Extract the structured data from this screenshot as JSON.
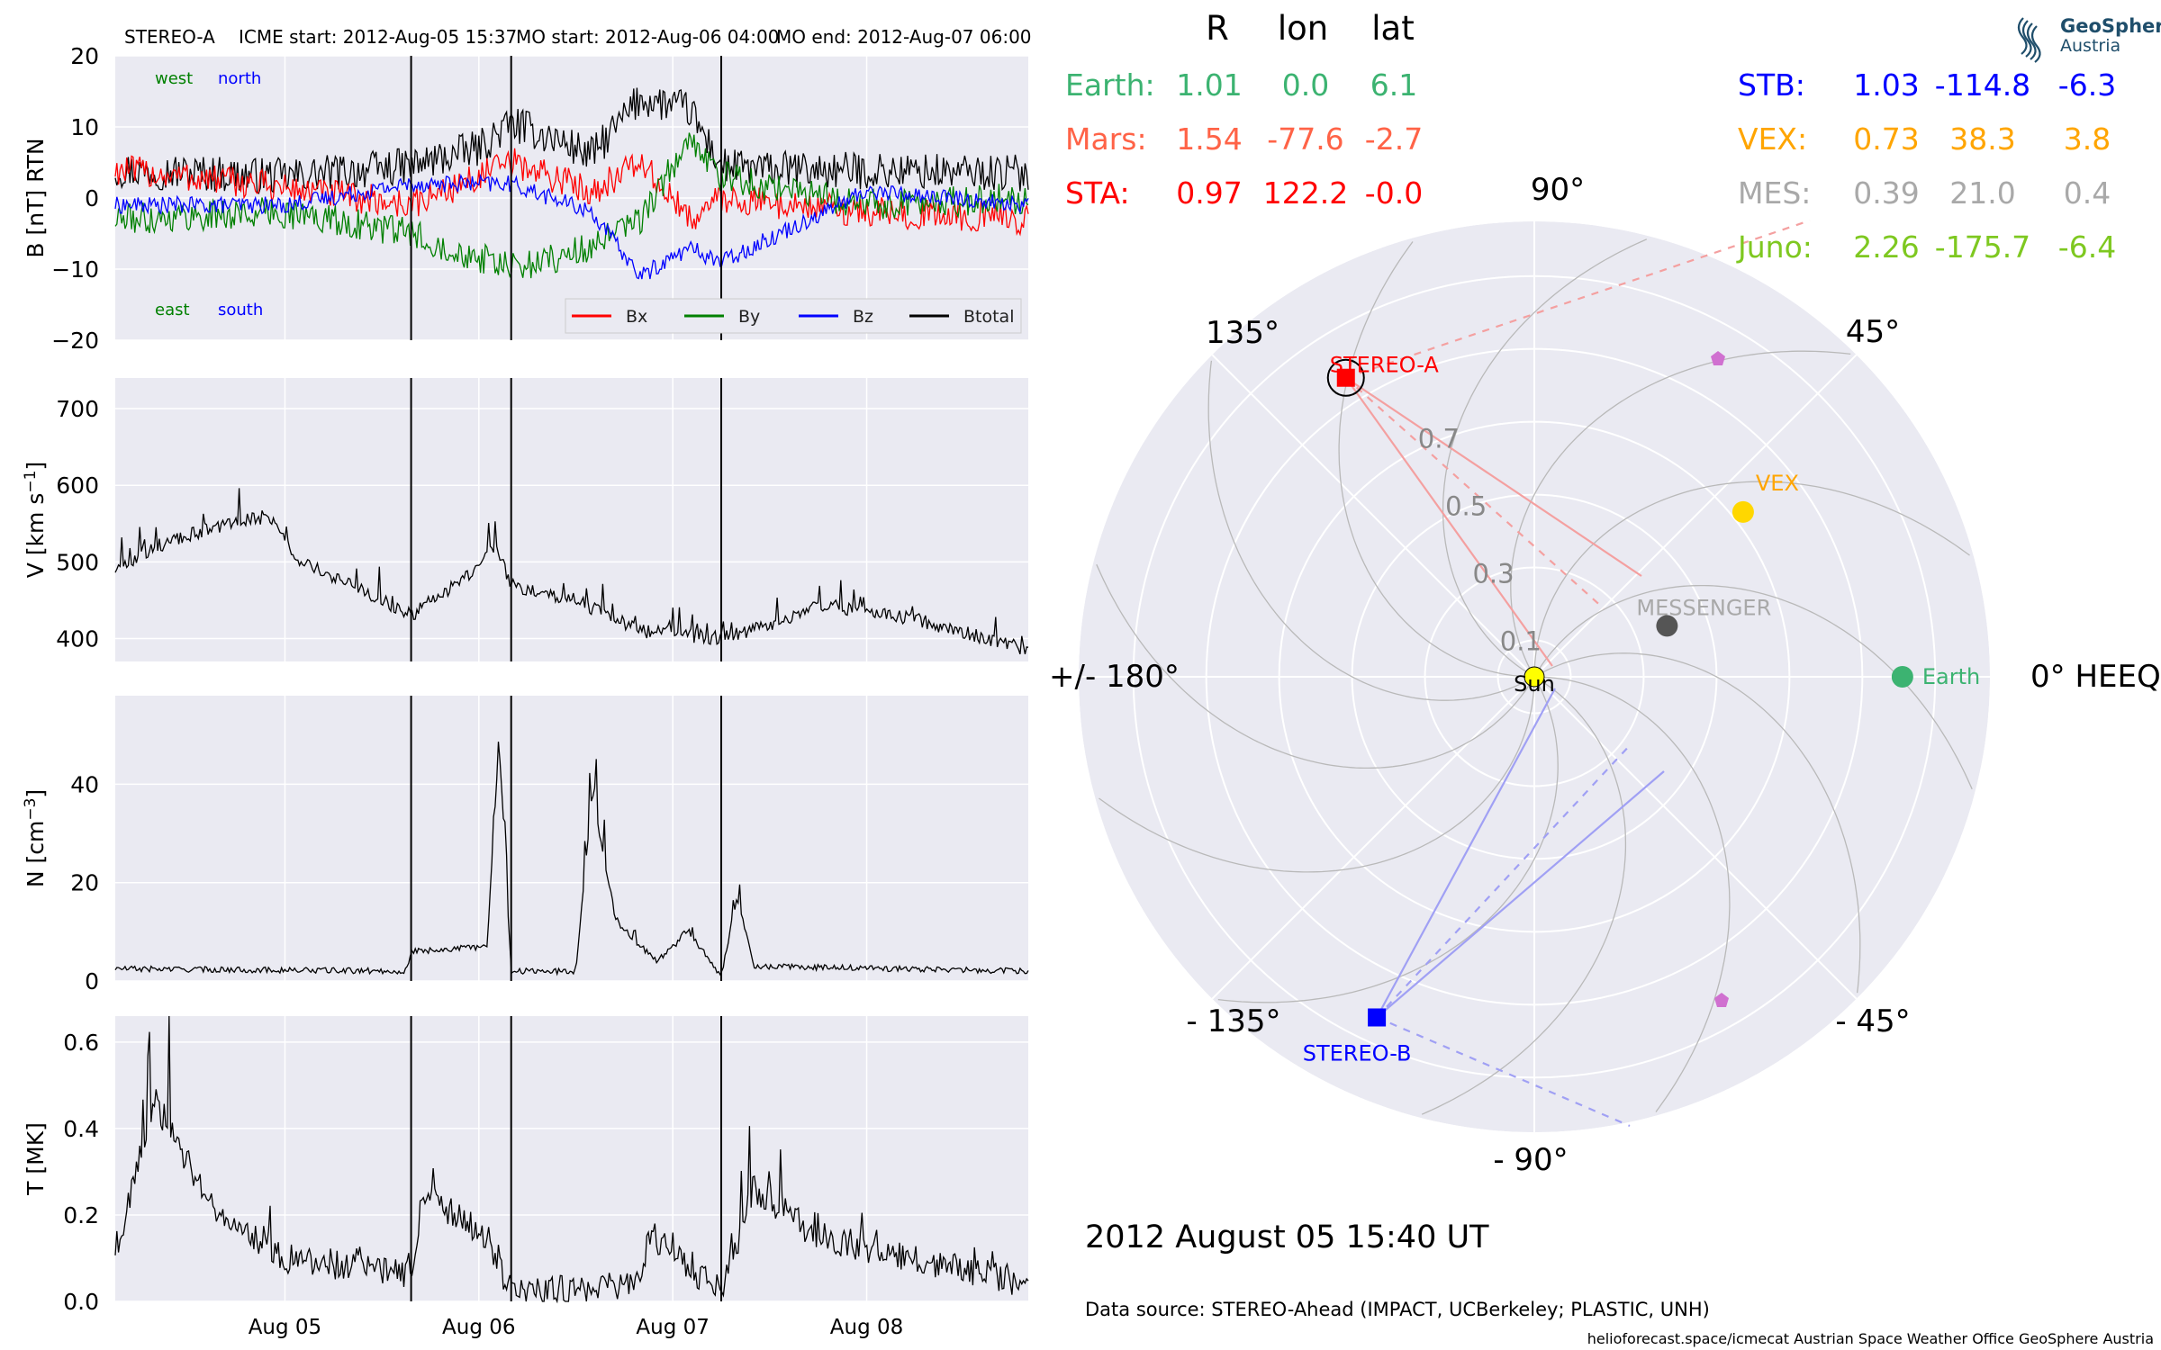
{
  "header": {
    "spacecraft": "STEREO-A",
    "icme_start": "ICME start: 2012-Aug-05 15:37",
    "mo_start": "MO start: 2012-Aug-06 04:00",
    "mo_end": "MO end: 2012-Aug-07 06:00"
  },
  "logo": {
    "line1": "GeoSphere",
    "line2": "Austria"
  },
  "timestamp": "2012 August 05  15:40 UT",
  "data_source": "Data source: STEREO-Ahead (IMPACT, UCBerkeley; PLASTIC, UNH)",
  "footer": "helioforecast.space/icmecat   Austrian Space Weather Office   GeoSphere Austria",
  "position_table": {
    "headers": [
      "R",
      "lon",
      "lat"
    ],
    "left_rows": [
      {
        "label": "Earth:",
        "r": "1.01",
        "lon": "0.0",
        "lat": "6.1",
        "color": "#3cb371"
      },
      {
        "label": "Mars:",
        "r": "1.54",
        "lon": "-77.6",
        "lat": "-2.7",
        "color": "#ff6347"
      },
      {
        "label": "STA:",
        "r": "0.97",
        "lon": "122.2",
        "lat": "-0.0",
        "color": "#ff0000"
      }
    ],
    "right_rows": [
      {
        "label": "STB:",
        "r": "1.03",
        "lon": "-114.8",
        "lat": "-6.3",
        "color": "#0000ff"
      },
      {
        "label": "VEX:",
        "r": "0.73",
        "lon": "38.3",
        "lat": "3.8",
        "color": "#ffa500"
      },
      {
        "label": "MES:",
        "r": "0.39",
        "lon": "21.0",
        "lat": "0.4",
        "color": "#a9a9a9"
      },
      {
        "label": "Juno:",
        "r": "2.26",
        "lon": "-175.7",
        "lat": "-6.4",
        "color": "#7ec820"
      }
    ]
  },
  "chart_data": [
    {
      "type": "line",
      "panel": "magnetic-field",
      "ylabel": "B [nT] RTN",
      "ylim": [
        -20,
        20
      ],
      "yticks": [
        "20",
        "10",
        "0",
        "−10",
        "−20"
      ],
      "xlim_days": [
        "2012-08-04 03:00",
        "2012-08-08 20:00"
      ],
      "xticks": [
        "Aug 05",
        "Aug 06",
        "Aug 07",
        "Aug 08"
      ],
      "grid": true,
      "legend": {
        "placement": "lower-right",
        "entries": [
          "Bx",
          "By",
          "Bz",
          "Btotal"
        ]
      },
      "annotations": [
        {
          "text": "west",
          "color": "#008000"
        },
        {
          "text": "north",
          "color": "#0000ff"
        },
        {
          "text": "east",
          "color": "#008000"
        },
        {
          "text": "south",
          "color": "#0000ff"
        }
      ],
      "series": [
        {
          "name": "Btotal",
          "color": "#000000",
          "points": [
            [
              "2012-08-04 03:00",
              4
            ],
            [
              "2012-08-05 00:00",
              3
            ],
            [
              "2012-08-05 15:37",
              4.5
            ],
            [
              "2012-08-06 00:00",
              7
            ],
            [
              "2012-08-06 04:00",
              10.5
            ],
            [
              "2012-08-06 09:00",
              8.5
            ],
            [
              "2012-08-06 14:00",
              6
            ],
            [
              "2012-08-06 20:00",
              14
            ],
            [
              "2012-08-07 02:00",
              12.5
            ],
            [
              "2012-08-07 06:00",
              4.5
            ],
            [
              "2012-08-07 12:00",
              4
            ],
            [
              "2012-08-08 20:00",
              3.5
            ]
          ]
        },
        {
          "name": "Bx",
          "color": "#ff0000",
          "points": [
            [
              "2012-08-04 03:00",
              4
            ],
            [
              "2012-08-04 20:00",
              2
            ],
            [
              "2012-08-05 15:37",
              -1
            ],
            [
              "2012-08-06 04:00",
              5
            ],
            [
              "2012-08-06 14:00",
              1
            ],
            [
              "2012-08-06 20:00",
              5
            ],
            [
              "2012-08-07 02:00",
              -3
            ],
            [
              "2012-08-07 06:00",
              0
            ],
            [
              "2012-08-08 00:00",
              -2
            ],
            [
              "2012-08-08 20:00",
              -3
            ]
          ]
        },
        {
          "name": "By",
          "color": "#008000",
          "points": [
            [
              "2012-08-04 03:00",
              -3
            ],
            [
              "2012-08-05 00:00",
              -2
            ],
            [
              "2012-08-05 15:37",
              -5
            ],
            [
              "2012-08-06 04:00",
              -10
            ],
            [
              "2012-08-06 14:00",
              -7
            ],
            [
              "2012-08-06 20:00",
              -3
            ],
            [
              "2012-08-07 02:00",
              8
            ],
            [
              "2012-08-07 06:00",
              3
            ],
            [
              "2012-08-08 00:00",
              -1
            ],
            [
              "2012-08-08 20:00",
              0
            ]
          ]
        },
        {
          "name": "Bz",
          "color": "#0000ff",
          "points": [
            [
              "2012-08-04 03:00",
              -1
            ],
            [
              "2012-08-05 00:00",
              -1
            ],
            [
              "2012-08-05 15:37",
              2
            ],
            [
              "2012-08-06 04:00",
              2
            ],
            [
              "2012-08-06 14:00",
              -2
            ],
            [
              "2012-08-06 20:00",
              -11
            ],
            [
              "2012-08-07 02:00",
              -7
            ],
            [
              "2012-08-07 06:00",
              -9
            ],
            [
              "2012-08-08 00:00",
              1
            ],
            [
              "2012-08-08 20:00",
              -1
            ]
          ]
        }
      ]
    },
    {
      "type": "line",
      "panel": "speed",
      "ylabel": "V [km s",
      "ylabel_sup": "−1",
      "ylabel_end": "]",
      "ylim": [
        370,
        740
      ],
      "yticks": [
        "700",
        "600",
        "500",
        "400"
      ],
      "grid": true,
      "series": [
        {
          "name": "V",
          "color": "#000000",
          "points": [
            [
              "2012-08-04 03:00",
              490
            ],
            [
              "2012-08-04 08:00",
              520
            ],
            [
              "2012-08-04 15:00",
              545
            ],
            [
              "2012-08-04 22:00",
              560
            ],
            [
              "2012-08-05 02:00",
              500
            ],
            [
              "2012-08-05 10:00",
              460
            ],
            [
              "2012-08-05 15:37",
              430
            ],
            [
              "2012-08-05 23:00",
              485
            ],
            [
              "2012-08-06 02:00",
              520
            ],
            [
              "2012-08-06 04:00",
              470
            ],
            [
              "2012-08-06 12:00",
              450
            ],
            [
              "2012-08-06 20:00",
              410
            ],
            [
              "2012-08-07 06:00",
              400
            ],
            [
              "2012-08-07 14:00",
              425
            ],
            [
              "2012-08-07 18:00",
              445
            ],
            [
              "2012-08-08 06:00",
              425
            ],
            [
              "2012-08-08 20:00",
              385
            ]
          ]
        }
      ]
    },
    {
      "type": "line",
      "panel": "density",
      "ylabel": "N [cm",
      "ylabel_sup": "−3",
      "ylabel_end": "]",
      "ylim": [
        0,
        58
      ],
      "yticks": [
        "40",
        "20",
        "0"
      ],
      "grid": true,
      "series": [
        {
          "name": "N",
          "color": "#000000",
          "points": [
            [
              "2012-08-04 03:00",
              2.5
            ],
            [
              "2012-08-05 15:00",
              2
            ],
            [
              "2012-08-05 15:37",
              6
            ],
            [
              "2012-08-06 01:00",
              7
            ],
            [
              "2012-08-06 02:30",
              49
            ],
            [
              "2012-08-06 04:00",
              2
            ],
            [
              "2012-08-06 12:00",
              2
            ],
            [
              "2012-08-06 14:00",
              38
            ],
            [
              "2012-08-06 17:00",
              12
            ],
            [
              "2012-08-06 22:00",
              4
            ],
            [
              "2012-08-07 02:00",
              10
            ],
            [
              "2012-08-07 06:00",
              1
            ],
            [
              "2012-08-07 08:00",
              17
            ],
            [
              "2012-08-07 10:00",
              3
            ],
            [
              "2012-08-08 20:00",
              2
            ]
          ]
        }
      ]
    },
    {
      "type": "line",
      "panel": "temperature",
      "ylabel": "T [MK]",
      "ylim": [
        0,
        0.66
      ],
      "yticks": [
        "0.6",
        "0.4",
        "0.2",
        "0.0"
      ],
      "grid": true,
      "series": [
        {
          "name": "T",
          "color": "#000000",
          "points": [
            [
              "2012-08-04 03:00",
              0.12
            ],
            [
              "2012-08-04 08:00",
              0.46
            ],
            [
              "2012-08-04 15:00",
              0.22
            ],
            [
              "2012-08-05 00:00",
              0.1
            ],
            [
              "2012-08-05 15:37",
              0.06
            ],
            [
              "2012-08-05 17:00",
              0.25
            ],
            [
              "2012-08-06 00:00",
              0.16
            ],
            [
              "2012-08-06 04:00",
              0.02
            ],
            [
              "2012-08-06 20:00",
              0.04
            ],
            [
              "2012-08-06 21:00",
              0.16
            ],
            [
              "2012-08-07 06:00",
              0.02
            ],
            [
              "2012-08-07 10:00",
              0.26
            ],
            [
              "2012-08-07 18:00",
              0.15
            ],
            [
              "2012-08-08 20:00",
              0.04
            ]
          ]
        }
      ]
    },
    {
      "type": "scatter",
      "panel": "polar-heeq",
      "angular_labels": [
        "0° HEEQ",
        "45°",
        "90°",
        "135°",
        "+/- 180°",
        "- 135°",
        "- 90°",
        "- 45°"
      ],
      "radial_ticks": [
        "0.1",
        "0.3",
        "0.5",
        "0.7"
      ],
      "r_max": 1.25,
      "points": [
        {
          "name": "Earth",
          "r": 1.01,
          "lon": 0.0,
          "color": "#3cb371"
        },
        {
          "name": "STEREO-A",
          "r": 0.97,
          "lon": 122.2,
          "color": "#ff0000"
        },
        {
          "name": "STEREO-B",
          "r": 1.03,
          "lon": -114.8,
          "color": "#0000ff"
        },
        {
          "name": "VEX",
          "r": 0.73,
          "lon": 38.3,
          "color": "#ffd700"
        },
        {
          "name": "MESSENGER",
          "r": 0.39,
          "lon": 21.0,
          "color": "#555555"
        },
        {
          "name": "Sun",
          "r": 0.0,
          "lon": 0.0,
          "color": "#ffff00"
        }
      ]
    }
  ]
}
